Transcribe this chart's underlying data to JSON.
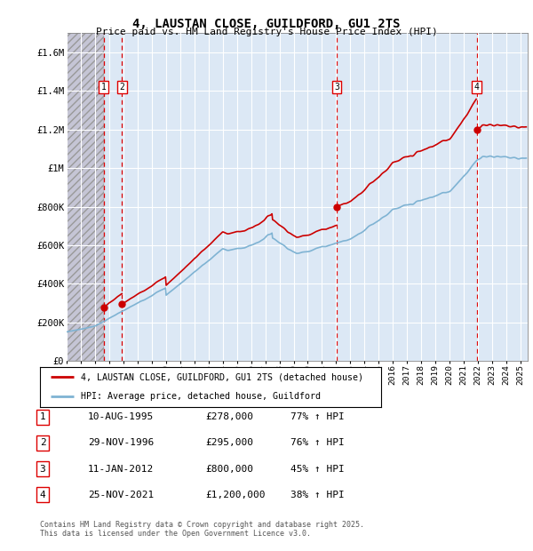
{
  "title": "4, LAUSTAN CLOSE, GUILDFORD, GU1 2TS",
  "subtitle": "Price paid vs. HM Land Registry's House Price Index (HPI)",
  "ylim": [
    0,
    1700000
  ],
  "yticks": [
    0,
    200000,
    400000,
    600000,
    800000,
    1000000,
    1200000,
    1400000,
    1600000
  ],
  "ytick_labels": [
    "£0",
    "£200K",
    "£400K",
    "£600K",
    "£800K",
    "£1M",
    "£1.2M",
    "£1.4M",
    "£1.6M"
  ],
  "xlim_start": 1993.0,
  "xlim_end": 2025.5,
  "hpi_color": "#7fb3d3",
  "price_color": "#cc0000",
  "dashed_line_color": "#dd0000",
  "chart_bg": "#dce8f5",
  "hatch_bg": "#c5c5d5",
  "transactions": [
    {
      "num": 1,
      "date": "10-AUG-1995",
      "year": 1995.62,
      "price": 278000,
      "pct": "77%",
      "arrow": "↑"
    },
    {
      "num": 2,
      "date": "29-NOV-1996",
      "year": 1996.91,
      "price": 295000,
      "pct": "76%",
      "arrow": "↑"
    },
    {
      "num": 3,
      "date": "11-JAN-2012",
      "year": 2012.03,
      "price": 800000,
      "pct": "45%",
      "arrow": "↑"
    },
    {
      "num": 4,
      "date": "25-NOV-2021",
      "year": 2021.9,
      "price": 1200000,
      "pct": "38%",
      "arrow": "↑"
    }
  ],
  "legend_entries": [
    "4, LAUSTAN CLOSE, GUILDFORD, GU1 2TS (detached house)",
    "HPI: Average price, detached house, Guildford"
  ],
  "footer_line1": "Contains HM Land Registry data © Crown copyright and database right 2025.",
  "footer_line2": "This data is licensed under the Open Government Licence v3.0."
}
